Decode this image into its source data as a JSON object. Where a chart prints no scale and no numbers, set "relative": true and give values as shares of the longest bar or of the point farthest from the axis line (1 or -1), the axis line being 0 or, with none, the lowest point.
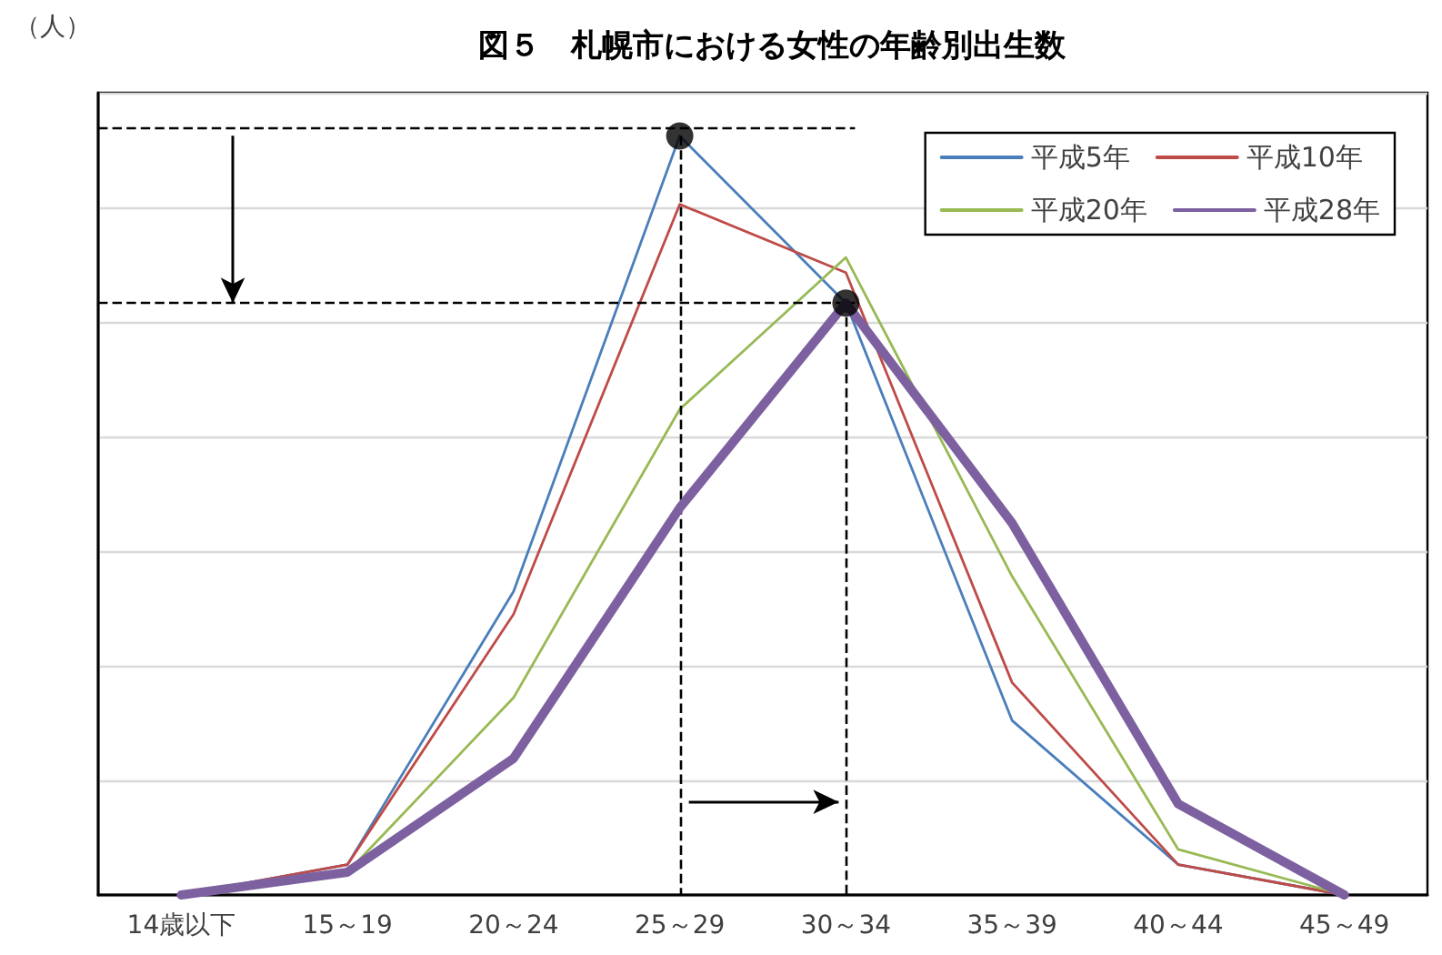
{
  "chart_data": {
    "type": "line",
    "title": "図５　札幌市における女性の年齢別出生数",
    "ylabel": "（人）",
    "relative": true,
    "categories": [
      "14歳以下",
      "15～19",
      "20～24",
      "25～29",
      "30～34",
      "35～39",
      "40～44",
      "45～49"
    ],
    "series": [
      {
        "name": "平成5年",
        "color": "#4a7ebb",
        "values": [
          0,
          0.04,
          0.4,
          1,
          0.78,
          0.23,
          0.04,
          0
        ]
      },
      {
        "name": "平成10年",
        "color": "#be4b48",
        "values": [
          0,
          0.04,
          0.37,
          0.91,
          0.82,
          0.28,
          0.04,
          0
        ]
      },
      {
        "name": "平成20年",
        "color": "#98b954",
        "values": [
          0,
          0.03,
          0.26,
          0.64,
          0.84,
          0.42,
          0.06,
          0
        ]
      },
      {
        "name": "平成28年",
        "color": "#7d60a0",
        "values": [
          0,
          0.03,
          0.18,
          0.51,
          0.78,
          0.49,
          0.12,
          0
        ]
      },
      {
        "type": "scatter",
        "color": "#000000",
        "marker": "circle",
        "x": [
          "25～29",
          "30～34"
        ],
        "values": [
          1,
          0.78
        ]
      }
    ],
    "grid": "y",
    "legend": "top right",
    "marker": "none",
    "line_style": "solid",
    "ref_lines": [
      {
        "axis": "y",
        "value": 1.01,
        "color": "#000000",
        "line_style": "dashed"
      },
      {
        "axis": "y",
        "value": 0.78,
        "color": "#000000",
        "line_style": "dashed"
      },
      {
        "axis": "x",
        "value": "25～29",
        "color": "#000000",
        "line_style": "dashed"
      },
      {
        "axis": "x",
        "value": "30～34",
        "color": "#000000",
        "line_style": "dashed"
      }
    ]
  }
}
